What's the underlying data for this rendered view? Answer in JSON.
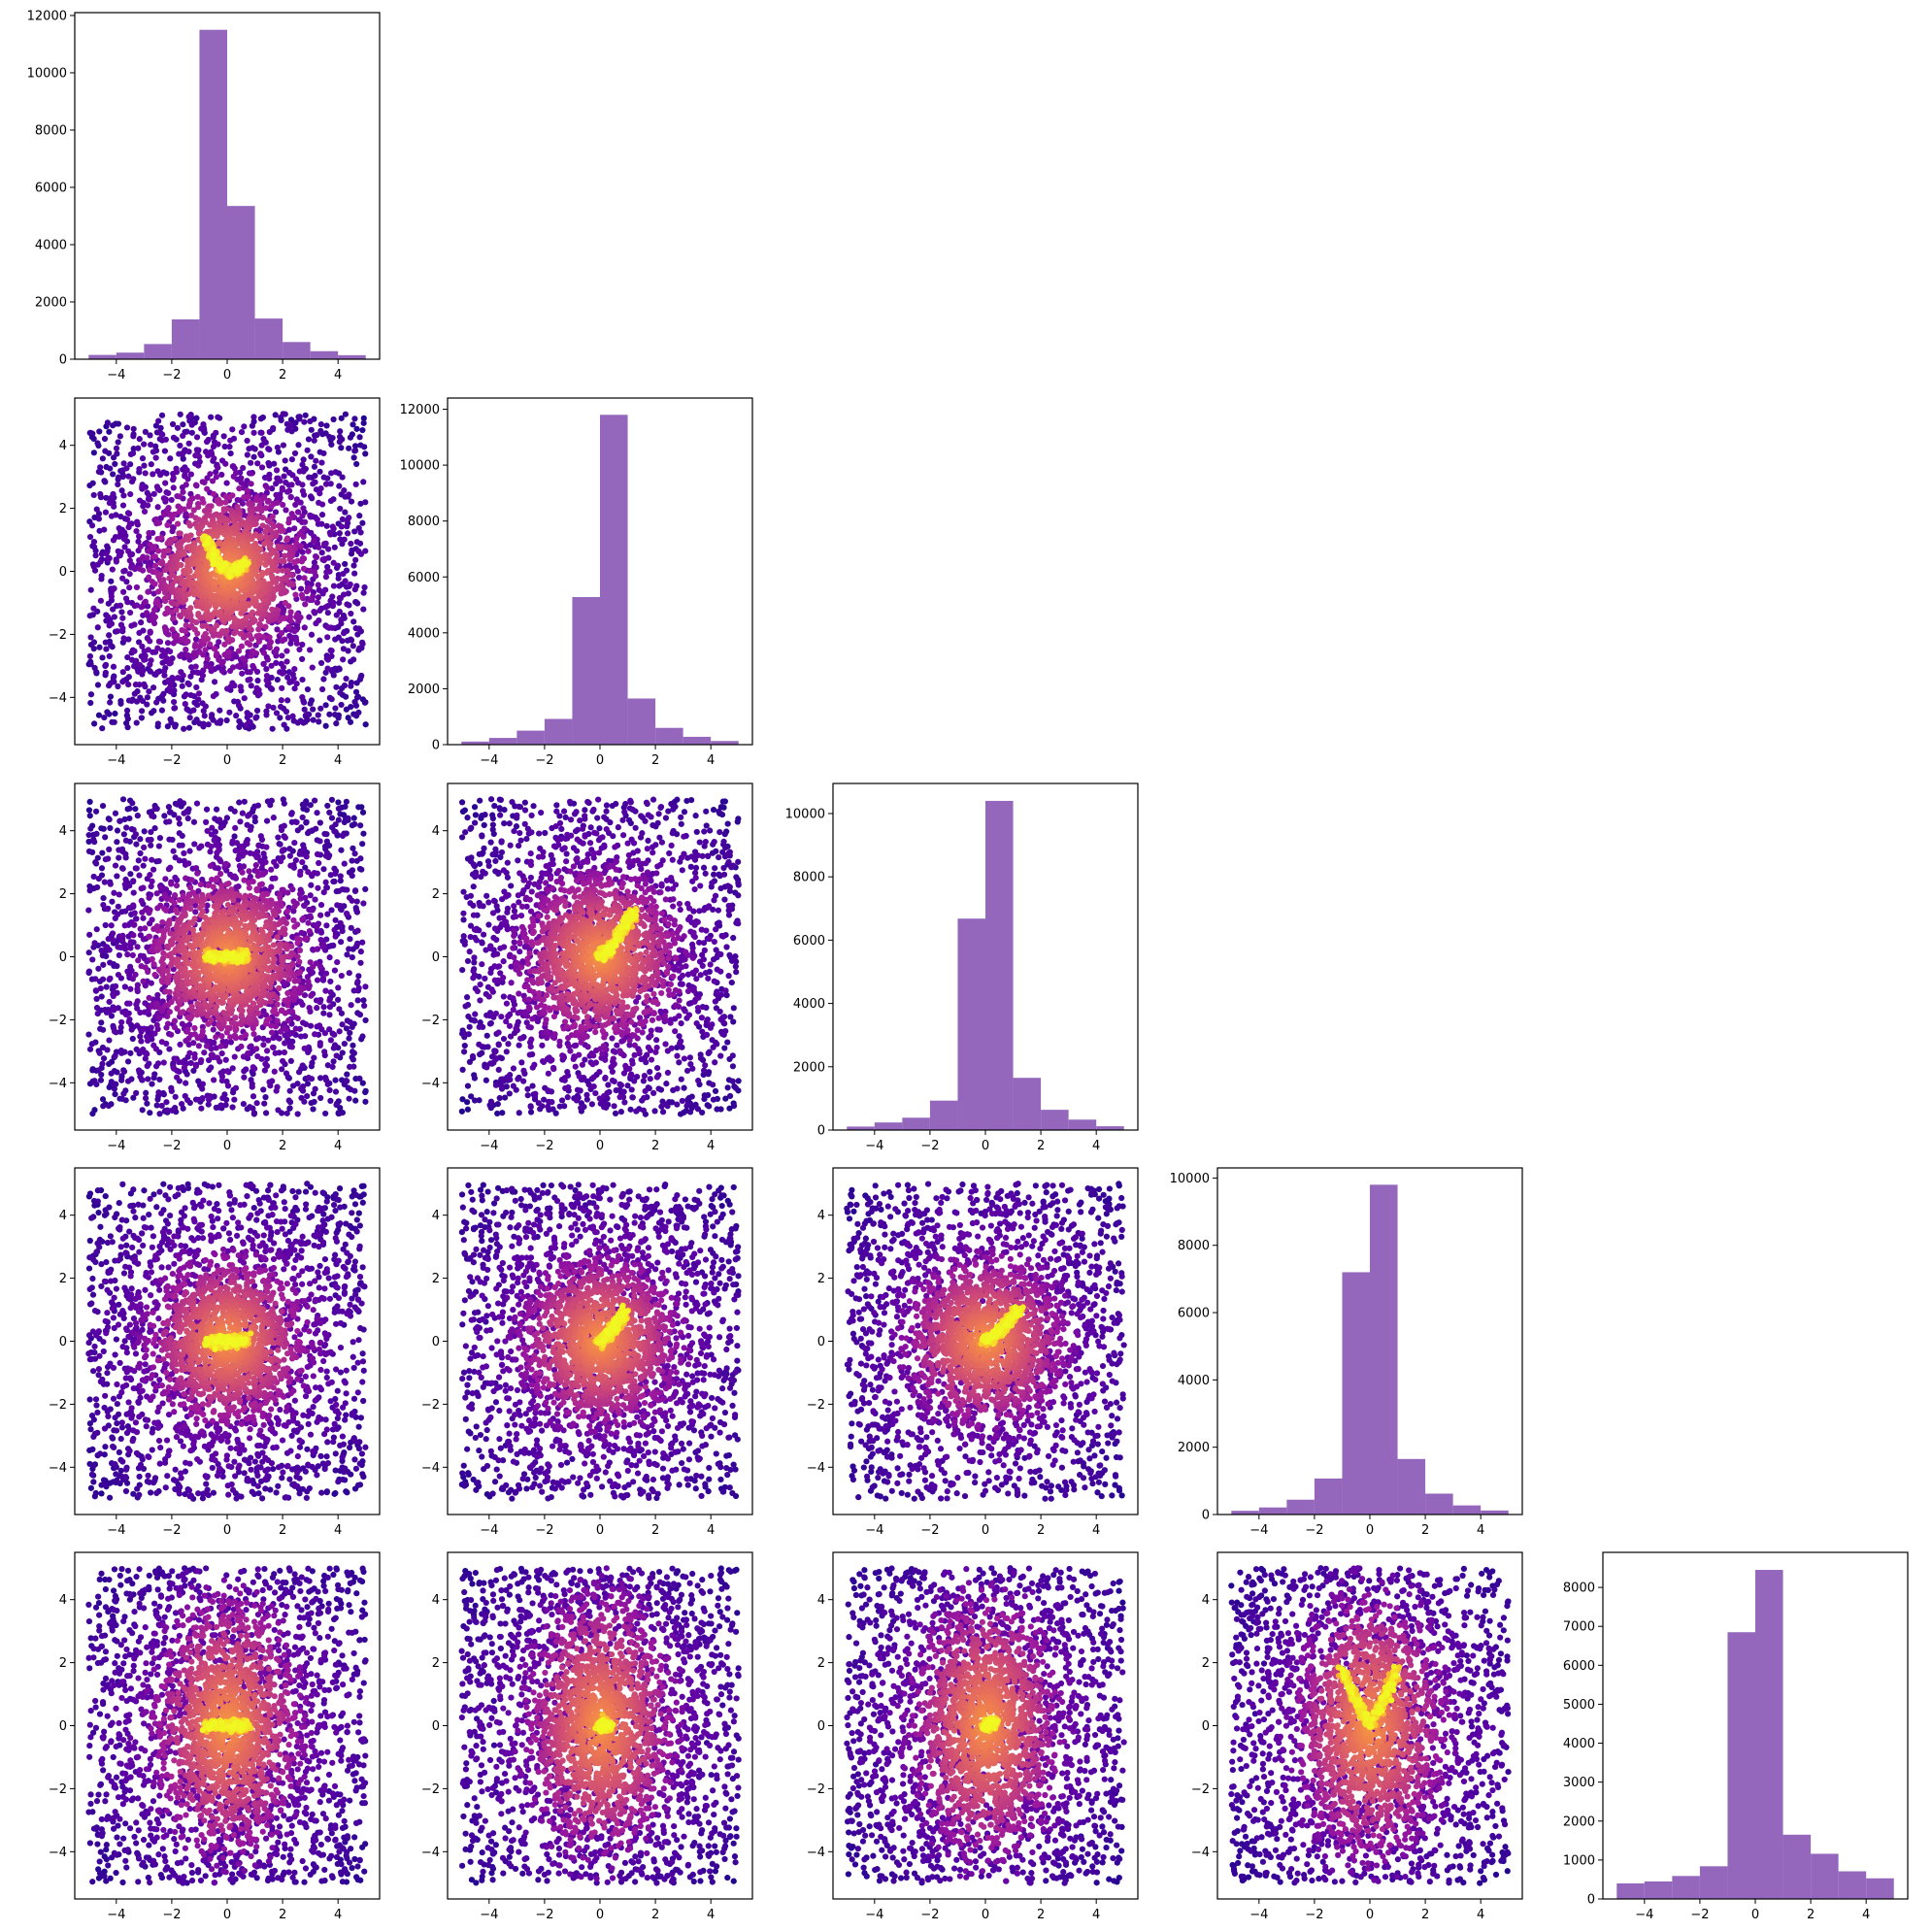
{
  "chart_data": {
    "type": "pairplot",
    "grid_size": 5,
    "bins": [
      -5,
      -4,
      -3,
      -2,
      -1,
      0,
      1,
      2,
      3,
      4,
      5
    ],
    "xlim": [
      -5.5,
      5.5
    ],
    "tick_values": [
      -4,
      -2,
      0,
      2,
      4
    ],
    "hist_color": "#9467bd",
    "scatter_colormap": [
      "#0d0887",
      "#5c01a6",
      "#9c179e",
      "#cc4778",
      "#ed7953",
      "#fdb42f",
      "#f0f921"
    ],
    "histograms": [
      {
        "panel": "0-0",
        "counts": [
          150,
          230,
          530,
          1390,
          11500,
          5350,
          1420,
          600,
          280,
          140
        ],
        "ylim": [
          0,
          12100
        ],
        "yticks": [
          0,
          2000,
          4000,
          6000,
          8000,
          10000,
          12000
        ]
      },
      {
        "panel": "1-1",
        "counts": [
          110,
          240,
          500,
          920,
          5280,
          11800,
          1650,
          600,
          280,
          130
        ],
        "ylim": [
          0,
          12400
        ],
        "yticks": [
          0,
          2000,
          4000,
          6000,
          8000,
          10000,
          12000
        ]
      },
      {
        "panel": "2-2",
        "counts": [
          110,
          240,
          390,
          930,
          6680,
          10400,
          1650,
          640,
          330,
          120
        ],
        "ylim": [
          0,
          10950
        ],
        "yticks": [
          0,
          2000,
          4000,
          6000,
          8000,
          10000
        ]
      },
      {
        "panel": "3-3",
        "counts": [
          110,
          210,
          440,
          1070,
          7200,
          9800,
          1650,
          620,
          270,
          120
        ],
        "ylim": [
          0,
          10300
        ],
        "yticks": [
          0,
          2000,
          4000,
          6000,
          8000,
          10000
        ]
      },
      {
        "panel": "4-4",
        "counts": [
          400,
          450,
          590,
          840,
          6850,
          8450,
          1650,
          1160,
          710,
          530
        ],
        "ylim": [
          0,
          8900
        ],
        "yticks": [
          0,
          1000,
          2000,
          3000,
          4000,
          5000,
          6000,
          7000,
          8000
        ]
      }
    ],
    "scatter_panels": [
      {
        "panel": "1-0",
        "core": "curve",
        "curve": [
          [
            -0.8,
            1.1
          ],
          [
            -0.5,
            0.5
          ],
          [
            -0.2,
            0.15
          ],
          [
            0.1,
            0.0
          ],
          [
            0.4,
            0.05
          ],
          [
            0.7,
            0.3
          ]
        ]
      },
      {
        "panel": "2-0",
        "core": "bar",
        "curve": [
          [
            -0.7,
            0.0
          ],
          [
            -0.35,
            0.0
          ],
          [
            0.0,
            0.0
          ],
          [
            0.35,
            0.0
          ],
          [
            0.7,
            0.0
          ]
        ]
      },
      {
        "panel": "2-1",
        "core": "curve",
        "curve": [
          [
            0.0,
            0.0
          ],
          [
            0.3,
            0.2
          ],
          [
            0.6,
            0.6
          ],
          [
            0.9,
            1.0
          ],
          [
            1.2,
            1.4
          ]
        ]
      },
      {
        "panel": "3-0",
        "core": "bar",
        "curve": [
          [
            -0.7,
            0.0
          ],
          [
            -0.35,
            0.0
          ],
          [
            0.0,
            0.0
          ],
          [
            0.35,
            0.0
          ],
          [
            0.7,
            0.0
          ]
        ]
      },
      {
        "panel": "3-1",
        "core": "curve",
        "curve": [
          [
            0.0,
            0.0
          ],
          [
            0.3,
            0.2
          ],
          [
            0.6,
            0.5
          ],
          [
            0.9,
            0.9
          ]
        ]
      },
      {
        "panel": "3-2",
        "core": "curve",
        "curve": [
          [
            0.0,
            0.0
          ],
          [
            0.3,
            0.15
          ],
          [
            0.6,
            0.4
          ],
          [
            0.9,
            0.7
          ],
          [
            1.2,
            1.0
          ]
        ]
      },
      {
        "panel": "4-0",
        "core": "bar",
        "curve": [
          [
            -0.7,
            0.0
          ],
          [
            -0.35,
            0.0
          ],
          [
            0.0,
            0.0
          ],
          [
            0.35,
            0.0
          ],
          [
            0.7,
            0.0
          ]
        ]
      },
      {
        "panel": "4-1",
        "core": "spot",
        "curve": [
          [
            0.0,
            0.0
          ],
          [
            0.3,
            0.0
          ]
        ]
      },
      {
        "panel": "4-2",
        "core": "spot",
        "curve": [
          [
            0.0,
            0.0
          ],
          [
            0.3,
            0.1
          ]
        ]
      },
      {
        "panel": "4-3",
        "core": "curve",
        "curve": [
          [
            -1.0,
            1.8
          ],
          [
            -0.5,
            0.8
          ],
          [
            0.0,
            0.0
          ],
          [
            0.5,
            0.8
          ],
          [
            1.0,
            1.8
          ]
        ]
      }
    ]
  }
}
